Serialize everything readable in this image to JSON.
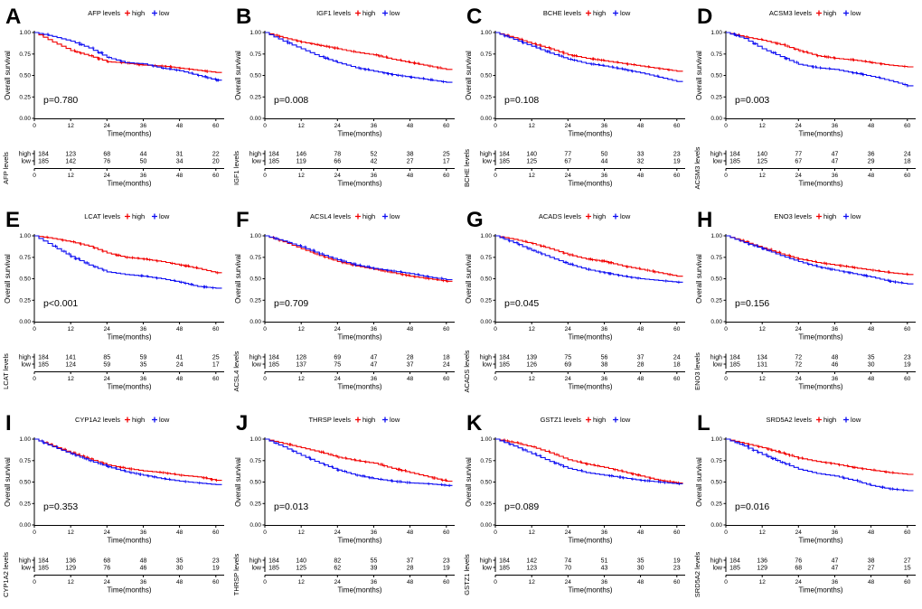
{
  "figure": {
    "background": "#ffffff",
    "colors": {
      "high": "#f20000",
      "low": "#0d0df2",
      "axis": "#000000",
      "text": "#000000"
    },
    "legend": {
      "high": "high",
      "low": "low"
    },
    "ylabel": "Overall survival",
    "xlabel": "Time(months)",
    "x_tick_values": [
      0,
      12,
      24,
      36,
      48,
      60
    ],
    "x_tick_labels": [
      "0",
      "12",
      "24",
      "36",
      "48",
      "60"
    ],
    "y_tick_values": [
      0,
      0.25,
      0.5,
      0.75,
      1
    ],
    "y_tick_labels": [
      "0.00",
      "0.25",
      "0.50",
      "0.75",
      "1.00"
    ],
    "risk_row_names": [
      "high",
      "low"
    ]
  },
  "chart_data": [
    {
      "type": "line",
      "panel_label": "A",
      "title": "AFP levels",
      "p_value": "p=0.780",
      "xlabel": "Time(months)",
      "ylabel": "Overall survival",
      "xlim": [
        0,
        62
      ],
      "ylim": [
        0,
        1
      ],
      "x": [
        0,
        6,
        12,
        18,
        24,
        30,
        36,
        42,
        48,
        54,
        60
      ],
      "series": [
        {
          "name": "high",
          "values": [
            1.0,
            0.89,
            0.79,
            0.73,
            0.66,
            0.645,
            0.62,
            0.61,
            0.585,
            0.56,
            0.535
          ]
        },
        {
          "name": "low",
          "values": [
            1.0,
            0.955,
            0.9,
            0.82,
            0.71,
            0.65,
            0.635,
            0.585,
            0.555,
            0.5,
            0.445
          ]
        }
      ],
      "risk_table": {
        "label": "AFP levels",
        "rows": [
          {
            "name": "high",
            "counts": [
              184,
              123,
              68,
              44,
              31,
              22
            ]
          },
          {
            "name": "low",
            "counts": [
              185,
              142,
              76,
              50,
              34,
              20
            ]
          }
        ]
      }
    },
    {
      "type": "line",
      "panel_label": "B",
      "title": "IGF1 levels",
      "p_value": "p=0.008",
      "xlabel": "Time(months)",
      "ylabel": "Overall survival",
      "xlim": [
        0,
        62
      ],
      "ylim": [
        0,
        1
      ],
      "x": [
        0,
        6,
        12,
        18,
        24,
        30,
        36,
        42,
        48,
        54,
        60
      ],
      "series": [
        {
          "name": "high",
          "values": [
            1.0,
            0.94,
            0.89,
            0.85,
            0.81,
            0.77,
            0.74,
            0.69,
            0.65,
            0.61,
            0.57
          ]
        },
        {
          "name": "low",
          "values": [
            1.0,
            0.9,
            0.81,
            0.72,
            0.65,
            0.59,
            0.55,
            0.51,
            0.48,
            0.45,
            0.42
          ]
        }
      ],
      "risk_table": {
        "label": "IGF1 levels",
        "rows": [
          {
            "name": "high",
            "counts": [
              184,
              146,
              78,
              52,
              38,
              25
            ]
          },
          {
            "name": "low",
            "counts": [
              185,
              119,
              66,
              42,
              27,
              17
            ]
          }
        ]
      }
    },
    {
      "type": "line",
      "panel_label": "C",
      "title": "BCHE levels",
      "p_value": "p=0.108",
      "xlabel": "Time(months)",
      "ylabel": "Overall survival",
      "xlim": [
        0,
        62
      ],
      "ylim": [
        0,
        1
      ],
      "x": [
        0,
        6,
        12,
        18,
        24,
        30,
        36,
        42,
        48,
        54,
        60
      ],
      "series": [
        {
          "name": "high",
          "values": [
            1.0,
            0.94,
            0.87,
            0.81,
            0.74,
            0.7,
            0.67,
            0.64,
            0.61,
            0.58,
            0.55
          ]
        },
        {
          "name": "low",
          "values": [
            1.0,
            0.92,
            0.84,
            0.76,
            0.69,
            0.64,
            0.61,
            0.57,
            0.53,
            0.48,
            0.43
          ]
        }
      ],
      "risk_table": {
        "label": "BCHE levels",
        "rows": [
          {
            "name": "high",
            "counts": [
              184,
              140,
              77,
              50,
              33,
              23
            ]
          },
          {
            "name": "low",
            "counts": [
              185,
              125,
              67,
              44,
              32,
              19
            ]
          }
        ]
      }
    },
    {
      "type": "line",
      "panel_label": "D",
      "title": "ACSM3 levels",
      "p_value": "p=0.003",
      "xlabel": "Time(months)",
      "ylabel": "Overall survival",
      "xlim": [
        0,
        62
      ],
      "ylim": [
        0,
        1
      ],
      "x": [
        0,
        6,
        12,
        18,
        24,
        30,
        36,
        42,
        48,
        54,
        60
      ],
      "series": [
        {
          "name": "high",
          "values": [
            1.0,
            0.95,
            0.91,
            0.86,
            0.79,
            0.73,
            0.7,
            0.68,
            0.65,
            0.62,
            0.6
          ]
        },
        {
          "name": "low",
          "values": [
            1.0,
            0.93,
            0.81,
            0.72,
            0.63,
            0.59,
            0.57,
            0.53,
            0.49,
            0.44,
            0.38
          ]
        }
      ],
      "risk_table": {
        "label": "ACSM3 levels",
        "rows": [
          {
            "name": "high",
            "counts": [
              184,
              140,
              77,
              47,
              36,
              24
            ]
          },
          {
            "name": "low",
            "counts": [
              185,
              125,
              67,
              47,
              29,
              18
            ]
          }
        ]
      }
    },
    {
      "type": "line",
      "panel_label": "E",
      "title": "LCAT levels",
      "p_value": "p<0.001",
      "xlabel": "Time(months)",
      "ylabel": "Overall survival",
      "xlim": [
        0,
        62
      ],
      "ylim": [
        0,
        1
      ],
      "x": [
        0,
        6,
        12,
        18,
        24,
        30,
        36,
        42,
        48,
        54,
        60
      ],
      "series": [
        {
          "name": "high",
          "values": [
            1.0,
            0.97,
            0.93,
            0.88,
            0.8,
            0.75,
            0.73,
            0.7,
            0.66,
            0.62,
            0.57
          ]
        },
        {
          "name": "low",
          "values": [
            1.0,
            0.88,
            0.76,
            0.66,
            0.58,
            0.55,
            0.53,
            0.5,
            0.46,
            0.41,
            0.39
          ]
        }
      ],
      "risk_table": {
        "label": "LCAT levels",
        "rows": [
          {
            "name": "high",
            "counts": [
              184,
              141,
              85,
              59,
              41,
              25
            ]
          },
          {
            "name": "low",
            "counts": [
              185,
              124,
              59,
              35,
              24,
              17
            ]
          }
        ]
      }
    },
    {
      "type": "line",
      "panel_label": "F",
      "title": "ACSL4 levels",
      "p_value": "p=0.709",
      "xlabel": "Time(months)",
      "ylabel": "Overall survival",
      "xlim": [
        0,
        62
      ],
      "ylim": [
        0,
        1
      ],
      "x": [
        0,
        6,
        12,
        18,
        24,
        30,
        36,
        42,
        48,
        54,
        60
      ],
      "series": [
        {
          "name": "high",
          "values": [
            1.0,
            0.93,
            0.85,
            0.77,
            0.7,
            0.65,
            0.61,
            0.57,
            0.53,
            0.5,
            0.47
          ]
        },
        {
          "name": "low",
          "values": [
            1.0,
            0.94,
            0.87,
            0.79,
            0.72,
            0.66,
            0.62,
            0.59,
            0.56,
            0.52,
            0.49
          ]
        }
      ],
      "risk_table": {
        "label": "ACSL4 levels",
        "rows": [
          {
            "name": "high",
            "counts": [
              184,
              128,
              69,
              47,
              28,
              18
            ]
          },
          {
            "name": "low",
            "counts": [
              185,
              137,
              75,
              47,
              37,
              24
            ]
          }
        ]
      }
    },
    {
      "type": "line",
      "panel_label": "G",
      "title": "ACADS levels",
      "p_value": "p=0.045",
      "xlabel": "Time(months)",
      "ylabel": "Overall survival",
      "xlim": [
        0,
        62
      ],
      "ylim": [
        0,
        1
      ],
      "x": [
        0,
        6,
        12,
        18,
        24,
        30,
        36,
        42,
        48,
        54,
        60
      ],
      "series": [
        {
          "name": "high",
          "values": [
            1.0,
            0.96,
            0.91,
            0.85,
            0.78,
            0.73,
            0.7,
            0.65,
            0.61,
            0.57,
            0.53
          ]
        },
        {
          "name": "low",
          "values": [
            1.0,
            0.92,
            0.83,
            0.75,
            0.67,
            0.61,
            0.57,
            0.53,
            0.5,
            0.48,
            0.46
          ]
        }
      ],
      "risk_table": {
        "label": "ACADS levels",
        "rows": [
          {
            "name": "high",
            "counts": [
              184,
              139,
              75,
              56,
              37,
              24
            ]
          },
          {
            "name": "low",
            "counts": [
              185,
              126,
              69,
              38,
              28,
              18
            ]
          }
        ]
      }
    },
    {
      "type": "line",
      "panel_label": "H",
      "title": "ENO3 levels",
      "p_value": "p=0.156",
      "xlabel": "Time(months)",
      "ylabel": "Overall survival",
      "xlim": [
        0,
        62
      ],
      "ylim": [
        0,
        1
      ],
      "x": [
        0,
        6,
        12,
        18,
        24,
        30,
        36,
        42,
        48,
        54,
        60
      ],
      "series": [
        {
          "name": "high",
          "values": [
            1.0,
            0.93,
            0.86,
            0.79,
            0.73,
            0.69,
            0.66,
            0.63,
            0.6,
            0.57,
            0.55
          ]
        },
        {
          "name": "low",
          "values": [
            1.0,
            0.92,
            0.85,
            0.77,
            0.7,
            0.64,
            0.6,
            0.56,
            0.52,
            0.47,
            0.44
          ]
        }
      ],
      "risk_table": {
        "label": "ENO3 levels",
        "rows": [
          {
            "name": "high",
            "counts": [
              184,
              134,
              72,
              48,
              35,
              23
            ]
          },
          {
            "name": "low",
            "counts": [
              185,
              131,
              72,
              46,
              30,
              19
            ]
          }
        ]
      }
    },
    {
      "type": "line",
      "panel_label": "I",
      "title": "CYP1A2 levels",
      "p_value": "p=0.353",
      "xlabel": "Time(months)",
      "ylabel": "Overall survival",
      "xlim": [
        0,
        62
      ],
      "ylim": [
        0,
        1
      ],
      "x": [
        0,
        6,
        12,
        18,
        24,
        30,
        36,
        42,
        48,
        54,
        60
      ],
      "series": [
        {
          "name": "high",
          "values": [
            1.0,
            0.92,
            0.84,
            0.77,
            0.7,
            0.66,
            0.63,
            0.61,
            0.58,
            0.56,
            0.52
          ]
        },
        {
          "name": "low",
          "values": [
            1.0,
            0.91,
            0.83,
            0.75,
            0.68,
            0.62,
            0.58,
            0.54,
            0.51,
            0.49,
            0.47
          ]
        }
      ],
      "risk_table": {
        "label": "CYP1A2 levels",
        "rows": [
          {
            "name": "high",
            "counts": [
              184,
              136,
              68,
              48,
              35,
              23
            ]
          },
          {
            "name": "low",
            "counts": [
              185,
              129,
              76,
              46,
              30,
              19
            ]
          }
        ]
      }
    },
    {
      "type": "line",
      "panel_label": "J",
      "title": "THRSP levels",
      "p_value": "p=0.013",
      "xlabel": "Time(months)",
      "ylabel": "Overall survival",
      "xlim": [
        0,
        62
      ],
      "ylim": [
        0,
        1
      ],
      "x": [
        0,
        6,
        12,
        18,
        24,
        30,
        36,
        42,
        48,
        54,
        60
      ],
      "series": [
        {
          "name": "high",
          "values": [
            1.0,
            0.95,
            0.9,
            0.85,
            0.79,
            0.75,
            0.72,
            0.66,
            0.61,
            0.56,
            0.51
          ]
        },
        {
          "name": "low",
          "values": [
            1.0,
            0.91,
            0.81,
            0.72,
            0.64,
            0.58,
            0.54,
            0.51,
            0.49,
            0.48,
            0.46
          ]
        }
      ],
      "risk_table": {
        "label": "THRSP levels",
        "rows": [
          {
            "name": "high",
            "counts": [
              184,
              140,
              82,
              55,
              37,
              23
            ]
          },
          {
            "name": "low",
            "counts": [
              185,
              125,
              62,
              39,
              28,
              19
            ]
          }
        ]
      }
    },
    {
      "type": "line",
      "panel_label": "K",
      "title": "GSTZ1 levels",
      "p_value": "p=0.089",
      "xlabel": "Time(months)",
      "ylabel": "Overall survival",
      "xlim": [
        0,
        62
      ],
      "ylim": [
        0,
        1
      ],
      "x": [
        0,
        6,
        12,
        18,
        24,
        30,
        36,
        42,
        48,
        54,
        60
      ],
      "series": [
        {
          "name": "high",
          "values": [
            1.0,
            0.96,
            0.91,
            0.84,
            0.76,
            0.71,
            0.67,
            0.62,
            0.57,
            0.52,
            0.49
          ]
        },
        {
          "name": "low",
          "values": [
            1.0,
            0.92,
            0.83,
            0.74,
            0.66,
            0.61,
            0.58,
            0.55,
            0.52,
            0.5,
            0.48
          ]
        }
      ],
      "risk_table": {
        "label": "GSTZ1 levels",
        "rows": [
          {
            "name": "high",
            "counts": [
              184,
              142,
              74,
              51,
              35,
              19
            ]
          },
          {
            "name": "low",
            "counts": [
              185,
              123,
              70,
              43,
              30,
              23
            ]
          }
        ]
      }
    },
    {
      "type": "line",
      "panel_label": "L",
      "title": "SRD5A2 levels",
      "p_value": "p=0.016",
      "xlabel": "Time(months)",
      "ylabel": "Overall survival",
      "xlim": [
        0,
        62
      ],
      "ylim": [
        0,
        1
      ],
      "x": [
        0,
        6,
        12,
        18,
        24,
        30,
        36,
        42,
        48,
        54,
        60
      ],
      "series": [
        {
          "name": "high",
          "values": [
            1.0,
            0.95,
            0.9,
            0.84,
            0.78,
            0.74,
            0.71,
            0.67,
            0.64,
            0.61,
            0.59
          ]
        },
        {
          "name": "low",
          "values": [
            1.0,
            0.92,
            0.82,
            0.73,
            0.65,
            0.6,
            0.57,
            0.52,
            0.46,
            0.42,
            0.4
          ]
        }
      ],
      "risk_table": {
        "label": "SRD5A2 levels",
        "rows": [
          {
            "name": "high",
            "counts": [
              184,
              136,
              76,
              47,
              38,
              27
            ]
          },
          {
            "name": "low",
            "counts": [
              185,
              129,
              68,
              47,
              27,
              15
            ]
          }
        ]
      }
    }
  ]
}
